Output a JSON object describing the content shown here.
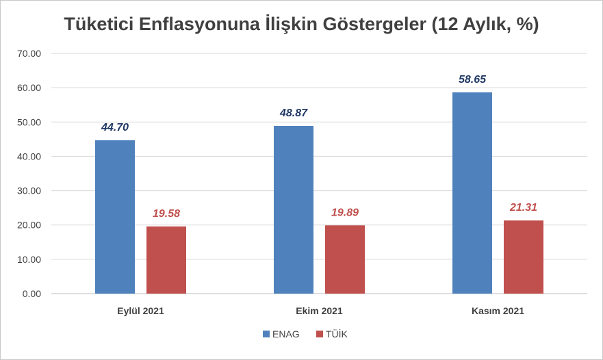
{
  "chart_data": {
    "type": "bar",
    "title": "Tüketici Enflasyonuna İlişkin Göstergeler (12 Aylık, %)",
    "categories": [
      "Eylül 2021",
      "Ekim 2021",
      "Kasım 2021"
    ],
    "series": [
      {
        "name": "ENAG",
        "values": [
          44.7,
          48.87,
          58.65
        ],
        "color": "#4f81bd",
        "label_color": "#1f3864"
      },
      {
        "name": "TÜİK",
        "values": [
          19.58,
          19.89,
          21.31
        ],
        "color": "#c0504d",
        "label_color": "#c0504d"
      }
    ],
    "ylim": [
      0,
      70
    ],
    "yticks": [
      0,
      10,
      20,
      30,
      40,
      50,
      60,
      70
    ],
    "ytick_labels": [
      "0.00",
      "10.00",
      "20.00",
      "30.00",
      "40.00",
      "50.00",
      "60.00",
      "70.00"
    ],
    "data_labels": [
      [
        "44.70",
        "48.87",
        "58.65"
      ],
      [
        "19.58",
        "19.89",
        "21.31"
      ]
    ],
    "grid": true,
    "legend": "bottom",
    "gridline_color": "#d9d9d9"
  }
}
